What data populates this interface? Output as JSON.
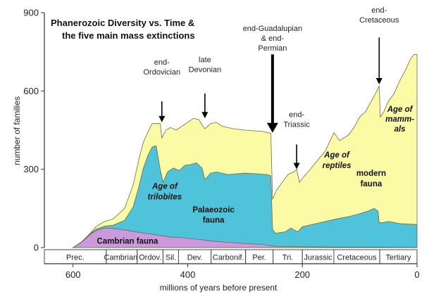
{
  "chart_data": {
    "type": "area",
    "title_lines": [
      "Phanerozoic Diversity vs. Time &",
      "the five main mass extinctions"
    ],
    "xlabel": "millions of years before present",
    "ylabel": "number of families",
    "xlim": [
      650,
      0
    ],
    "ylim": [
      0,
      900
    ],
    "x_ticks": [
      600,
      400,
      200,
      0
    ],
    "y_ticks": [
      0,
      300,
      600,
      900
    ],
    "series": [
      {
        "key": "cambrian",
        "name": "Cambrian fauna",
        "color": "#cc99dd",
        "points": [
          [
            600,
            0
          ],
          [
            585,
            20
          ],
          [
            570,
            50
          ],
          [
            560,
            65
          ],
          [
            545,
            75
          ],
          [
            530,
            73
          ],
          [
            510,
            68
          ],
          [
            490,
            60
          ],
          [
            475,
            55
          ],
          [
            460,
            50
          ],
          [
            445,
            45
          ],
          [
            430,
            40
          ],
          [
            410,
            38
          ],
          [
            395,
            34
          ],
          [
            375,
            30
          ],
          [
            360,
            25
          ],
          [
            330,
            20
          ],
          [
            300,
            15
          ],
          [
            270,
            12
          ],
          [
            252,
            6
          ],
          [
            240,
            4
          ],
          [
            200,
            3
          ],
          [
            150,
            2
          ],
          [
            100,
            2
          ],
          [
            0,
            1
          ]
        ]
      },
      {
        "key": "palaeozoic",
        "name": "Palaeozoic fauna",
        "color": "#4fc3d9",
        "points": [
          [
            600,
            0
          ],
          [
            585,
            21
          ],
          [
            570,
            53
          ],
          [
            560,
            70
          ],
          [
            545,
            82
          ],
          [
            530,
            86
          ],
          [
            510,
            104
          ],
          [
            495,
            156
          ],
          [
            485,
            235
          ],
          [
            478,
            300
          ],
          [
            470,
            350
          ],
          [
            462,
            385
          ],
          [
            455,
            390
          ],
          [
            448,
            300
          ],
          [
            443,
            250
          ],
          [
            435,
            290
          ],
          [
            425,
            305
          ],
          [
            415,
            295
          ],
          [
            405,
            315
          ],
          [
            395,
            318
          ],
          [
            385,
            325
          ],
          [
            375,
            305
          ],
          [
            370,
            260
          ],
          [
            360,
            285
          ],
          [
            350,
            290
          ],
          [
            330,
            280
          ],
          [
            300,
            285
          ],
          [
            280,
            283
          ],
          [
            262,
            280
          ],
          [
            255,
            275
          ],
          [
            252,
            70
          ],
          [
            247,
            55
          ],
          [
            230,
            60
          ],
          [
            220,
            75
          ],
          [
            208,
            60
          ],
          [
            200,
            80
          ],
          [
            180,
            90
          ],
          [
            160,
            100
          ],
          [
            140,
            110
          ],
          [
            120,
            118
          ],
          [
            100,
            130
          ],
          [
            85,
            140
          ],
          [
            75,
            150
          ],
          [
            68,
            140
          ],
          [
            66,
            95
          ],
          [
            60,
            95
          ],
          [
            50,
            100
          ],
          [
            30,
            92
          ],
          [
            0,
            88
          ]
        ]
      },
      {
        "key": "modern",
        "name": "modern fauna",
        "color": "#fbfba6",
        "points": [
          [
            600,
            0
          ],
          [
            585,
            22
          ],
          [
            570,
            55
          ],
          [
            560,
            80
          ],
          [
            545,
            100
          ],
          [
            530,
            110
          ],
          [
            510,
            150
          ],
          [
            495,
            240
          ],
          [
            485,
            340
          ],
          [
            478,
            400
          ],
          [
            470,
            440
          ],
          [
            462,
            475
          ],
          [
            448,
            475
          ],
          [
            445,
            420
          ],
          [
            438,
            450
          ],
          [
            430,
            460
          ],
          [
            420,
            450
          ],
          [
            410,
            465
          ],
          [
            400,
            480
          ],
          [
            390,
            495
          ],
          [
            380,
            490
          ],
          [
            375,
            470
          ],
          [
            370,
            455
          ],
          [
            360,
            475
          ],
          [
            350,
            480
          ],
          [
            340,
            465
          ],
          [
            320,
            455
          ],
          [
            300,
            450
          ],
          [
            270,
            445
          ],
          [
            255,
            438
          ],
          [
            252,
            185
          ],
          [
            245,
            220
          ],
          [
            235,
            250
          ],
          [
            225,
            280
          ],
          [
            215,
            290
          ],
          [
            210,
            300
          ],
          [
            205,
            250
          ],
          [
            200,
            265
          ],
          [
            190,
            290
          ],
          [
            175,
            330
          ],
          [
            160,
            370
          ],
          [
            145,
            440
          ],
          [
            135,
            410
          ],
          [
            120,
            430
          ],
          [
            110,
            460
          ],
          [
            100,
            500
          ],
          [
            90,
            520
          ],
          [
            80,
            560
          ],
          [
            70,
            600
          ],
          [
            66,
            620
          ],
          [
            64,
            500
          ],
          [
            58,
            520
          ],
          [
            50,
            560
          ],
          [
            40,
            590
          ],
          [
            30,
            640
          ],
          [
            20,
            680
          ],
          [
            12,
            720
          ],
          [
            5,
            740
          ],
          [
            0,
            740
          ]
        ]
      }
    ],
    "region_labels": [
      {
        "text": "Cambrian fauna",
        "style": "bold",
        "x": 505,
        "y": 15
      },
      {
        "text": "Age of",
        "style": "bold-italic",
        "x": 440,
        "y": 225
      },
      {
        "text": "trilobites",
        "style": "bold-italic",
        "x": 440,
        "y": 185
      },
      {
        "text": "Palaeozoic",
        "style": "bold",
        "x": 355,
        "y": 135
      },
      {
        "text": "fauna",
        "style": "bold",
        "x": 355,
        "y": 95
      },
      {
        "text": "Age of",
        "style": "bold-italic",
        "x": 140,
        "y": 345
      },
      {
        "text": "reptiles",
        "style": "bold-italic",
        "x": 140,
        "y": 305
      },
      {
        "text": "modern",
        "style": "bold",
        "x": 80,
        "y": 275
      },
      {
        "text": "fauna",
        "style": "bold",
        "x": 80,
        "y": 235
      },
      {
        "text": "Age of",
        "style": "bold-italic",
        "x": 30,
        "y": 520
      },
      {
        "text": "mamm-",
        "style": "bold-italic",
        "x": 30,
        "y": 482
      },
      {
        "text": "als",
        "style": "bold-italic",
        "x": 30,
        "y": 444
      }
    ],
    "extinctions": [
      {
        "lines": [
          "end-",
          "Ordovician"
        ],
        "x": 445,
        "label_y": 700,
        "arrow_from": 560,
        "arrow_to": 480,
        "thick": false
      },
      {
        "lines": [
          "late",
          "Devonian"
        ],
        "x": 370,
        "label_y": 710,
        "arrow_from": 590,
        "arrow_to": 495,
        "thick": false
      },
      {
        "lines": [
          "end-Guadalupian",
          "& end-",
          "Permian"
        ],
        "x": 252,
        "label_y": 830,
        "arrow_from": 740,
        "arrow_to": 440,
        "thick": true
      },
      {
        "lines": [
          "end-",
          "Triassic"
        ],
        "x": 210,
        "label_y": 500,
        "arrow_from": 395,
        "arrow_to": 300,
        "thick": false
      },
      {
        "lines": [
          "end-",
          "Cretaceous"
        ],
        "x": 66,
        "label_y": 900,
        "arrow_from": 805,
        "arrow_to": 625,
        "thick": false
      }
    ],
    "periods": [
      {
        "label": "Prec.",
        "start": 650,
        "end": 542
      },
      {
        "label": "Cambrian.",
        "start": 542,
        "end": 488
      },
      {
        "label": "Ordov.",
        "start": 488,
        "end": 443
      },
      {
        "label": "Sil.",
        "start": 443,
        "end": 416
      },
      {
        "label": "Dev.",
        "start": 416,
        "end": 359
      },
      {
        "label": "Carbonif.",
        "start": 359,
        "end": 299
      },
      {
        "label": "Per.",
        "start": 299,
        "end": 251
      },
      {
        "label": "Tri.",
        "start": 251,
        "end": 200
      },
      {
        "label": "Jurassic",
        "start": 200,
        "end": 145
      },
      {
        "label": "Cretaceous",
        "start": 145,
        "end": 65
      },
      {
        "label": "Tertiary",
        "start": 65,
        "end": 0
      }
    ],
    "grid": false,
    "legend": "none"
  }
}
